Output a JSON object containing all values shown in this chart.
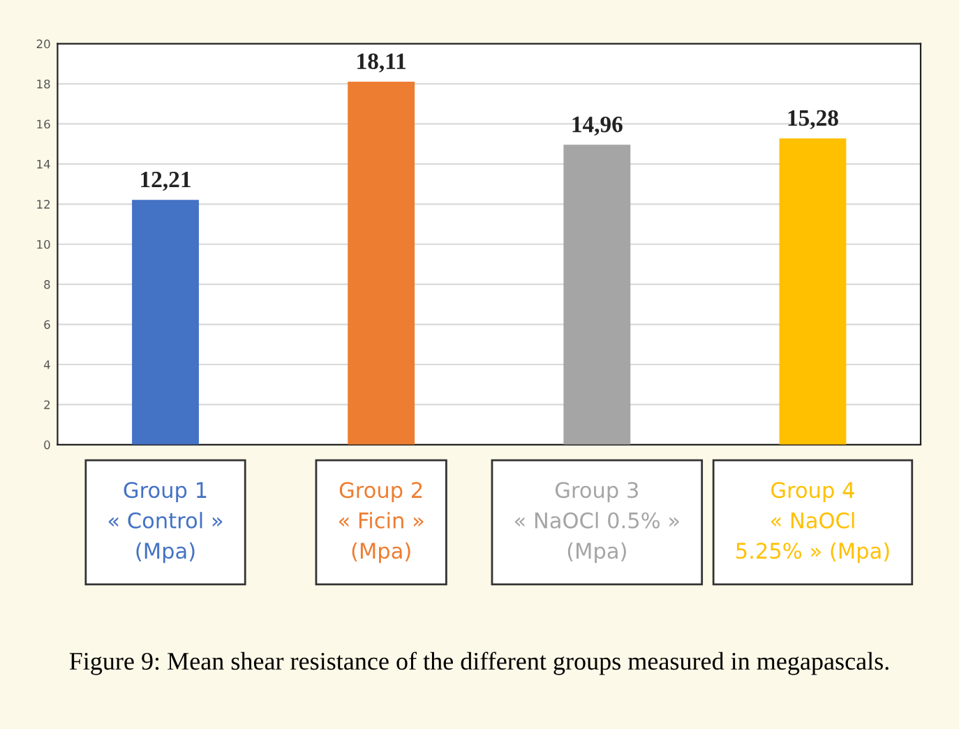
{
  "chart_data": {
    "type": "bar",
    "title": "Figure 9: Mean shear resistance of the different groups measured in megapascals.",
    "categories": [
      "Group 1\n« Control »\n(Mpa)",
      "Group 2\n« Ficin »\n(Mpa)",
      "Group 3\n« NaOCl 0.5% »\n(Mpa)",
      "Group 4\n« NaOCl\n5.25% » (Mpa)"
    ],
    "values": [
      12.21,
      18.11,
      14.96,
      15.28
    ],
    "colors": [
      "#4472c4",
      "#ed7d31",
      "#a5a5a5",
      "#ffc000"
    ],
    "value_labels": [
      "12,21",
      "18,11",
      "14,96",
      "15,28"
    ],
    "ylim": [
      0,
      20
    ],
    "yticks": [
      0,
      2,
      4,
      6,
      8,
      10,
      12,
      14,
      16,
      18,
      20
    ],
    "grid": "y"
  }
}
